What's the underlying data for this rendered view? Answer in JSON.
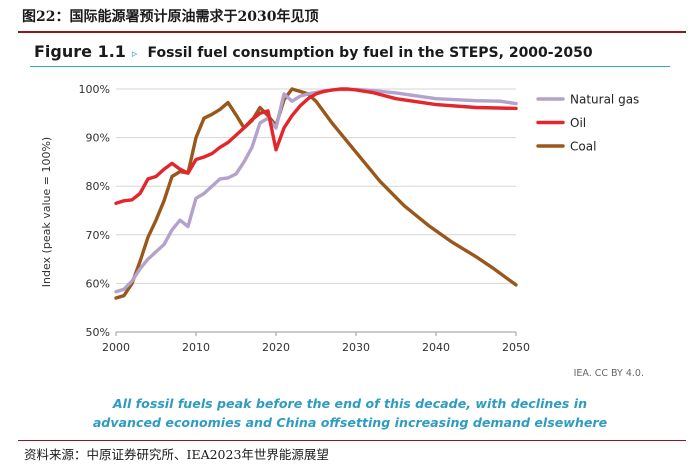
{
  "header": {
    "caption": "图22：国际能源署预计原油需求于2030年见顶"
  },
  "figure": {
    "label": "Figure 1.1",
    "arrow": "▹",
    "title": "Fossil fuel consumption by fuel in the STEPS, 2000-2050"
  },
  "credit": "IEA. CC BY 4.0.",
  "subtitle_lines": [
    "All fossil fuels peak before the end of this decade, with declines in",
    "advanced economies and China offsetting increasing demand elsewhere"
  ],
  "source": "资料来源：中原证券研究所、IEA2023年世界能源展望",
  "chart_data": {
    "type": "line",
    "title": "Fossil fuel consumption by fuel in the STEPS, 2000-2050",
    "ylabel": "Index (peak value = 100%)",
    "xlabel": "",
    "xlim": [
      2000,
      2050
    ],
    "ylim": [
      50,
      100
    ],
    "x_ticks": [
      "2000",
      "2010",
      "2020",
      "2030",
      "2040",
      "2050"
    ],
    "y_ticks": [
      "50%",
      "60%",
      "70%",
      "80%",
      "90%",
      "100%"
    ],
    "grid": "horizontal",
    "legend_position": "right",
    "series": [
      {
        "name": "Natural gas",
        "color": "#b3a2cc",
        "points": [
          [
            2000,
            58.3
          ],
          [
            2001,
            58.8
          ],
          [
            2002,
            60.5
          ],
          [
            2003,
            63
          ],
          [
            2004,
            65
          ],
          [
            2005,
            66.5
          ],
          [
            2006,
            68
          ],
          [
            2007,
            71
          ],
          [
            2008,
            73
          ],
          [
            2009,
            71.7
          ],
          [
            2010,
            77.5
          ],
          [
            2011,
            78.5
          ],
          [
            2012,
            80
          ],
          [
            2013,
            81.5
          ],
          [
            2014,
            81.7
          ],
          [
            2015,
            82.5
          ],
          [
            2016,
            85
          ],
          [
            2017,
            88
          ],
          [
            2018,
            93
          ],
          [
            2019,
            94
          ],
          [
            2020,
            92
          ],
          [
            2021,
            99
          ],
          [
            2022,
            97.5
          ],
          [
            2023,
            98.5
          ],
          [
            2024,
            99
          ],
          [
            2025,
            99.3
          ],
          [
            2026,
            99.6
          ],
          [
            2027,
            99.8
          ],
          [
            2028,
            99.9
          ],
          [
            2030,
            99.9
          ],
          [
            2032,
            99.7
          ],
          [
            2035,
            99.2
          ],
          [
            2040,
            98
          ],
          [
            2045,
            97.6
          ],
          [
            2048,
            97.5
          ],
          [
            2050,
            97
          ]
        ]
      },
      {
        "name": "Oil",
        "color": "#e3262b",
        "points": [
          [
            2000,
            76.5
          ],
          [
            2001,
            77
          ],
          [
            2002,
            77.2
          ],
          [
            2003,
            78.5
          ],
          [
            2004,
            81.5
          ],
          [
            2005,
            82
          ],
          [
            2006,
            83.5
          ],
          [
            2007,
            84.7
          ],
          [
            2008,
            83.5
          ],
          [
            2009,
            82.7
          ],
          [
            2010,
            85.5
          ],
          [
            2011,
            86
          ],
          [
            2012,
            86.7
          ],
          [
            2013,
            88
          ],
          [
            2014,
            89
          ],
          [
            2015,
            90.5
          ],
          [
            2016,
            92
          ],
          [
            2017,
            93.7
          ],
          [
            2018,
            95
          ],
          [
            2019,
            95.5
          ],
          [
            2020,
            87.5
          ],
          [
            2021,
            92
          ],
          [
            2022,
            94.5
          ],
          [
            2023,
            96.5
          ],
          [
            2024,
            98
          ],
          [
            2025,
            99
          ],
          [
            2026,
            99.5
          ],
          [
            2027,
            99.8
          ],
          [
            2028,
            100
          ],
          [
            2029,
            100
          ],
          [
            2030,
            99.8
          ],
          [
            2032,
            99.3
          ],
          [
            2035,
            98
          ],
          [
            2040,
            96.8
          ],
          [
            2045,
            96.2
          ],
          [
            2050,
            96
          ]
        ]
      },
      {
        "name": "Coal",
        "color": "#9a571b",
        "points": [
          [
            2000,
            57
          ],
          [
            2001,
            57.5
          ],
          [
            2002,
            60
          ],
          [
            2003,
            64.5
          ],
          [
            2004,
            69.5
          ],
          [
            2005,
            73
          ],
          [
            2006,
            77
          ],
          [
            2007,
            82
          ],
          [
            2008,
            83
          ],
          [
            2009,
            82.7
          ],
          [
            2010,
            90
          ],
          [
            2011,
            94
          ],
          [
            2012,
            94.8
          ],
          [
            2013,
            95.8
          ],
          [
            2014,
            97.2
          ],
          [
            2015,
            94.7
          ],
          [
            2016,
            92
          ],
          [
            2017,
            93.5
          ],
          [
            2018,
            96.2
          ],
          [
            2019,
            94.5
          ],
          [
            2020,
            92.5
          ],
          [
            2021,
            97.8
          ],
          [
            2022,
            100
          ],
          [
            2023,
            99.5
          ],
          [
            2024,
            99
          ],
          [
            2025,
            97.5
          ],
          [
            2027,
            93
          ],
          [
            2030,
            87
          ],
          [
            2033,
            81
          ],
          [
            2036,
            76
          ],
          [
            2039,
            72
          ],
          [
            2042,
            68.5
          ],
          [
            2045,
            65.5
          ],
          [
            2047,
            63.3
          ],
          [
            2050,
            59.7
          ]
        ]
      }
    ]
  }
}
